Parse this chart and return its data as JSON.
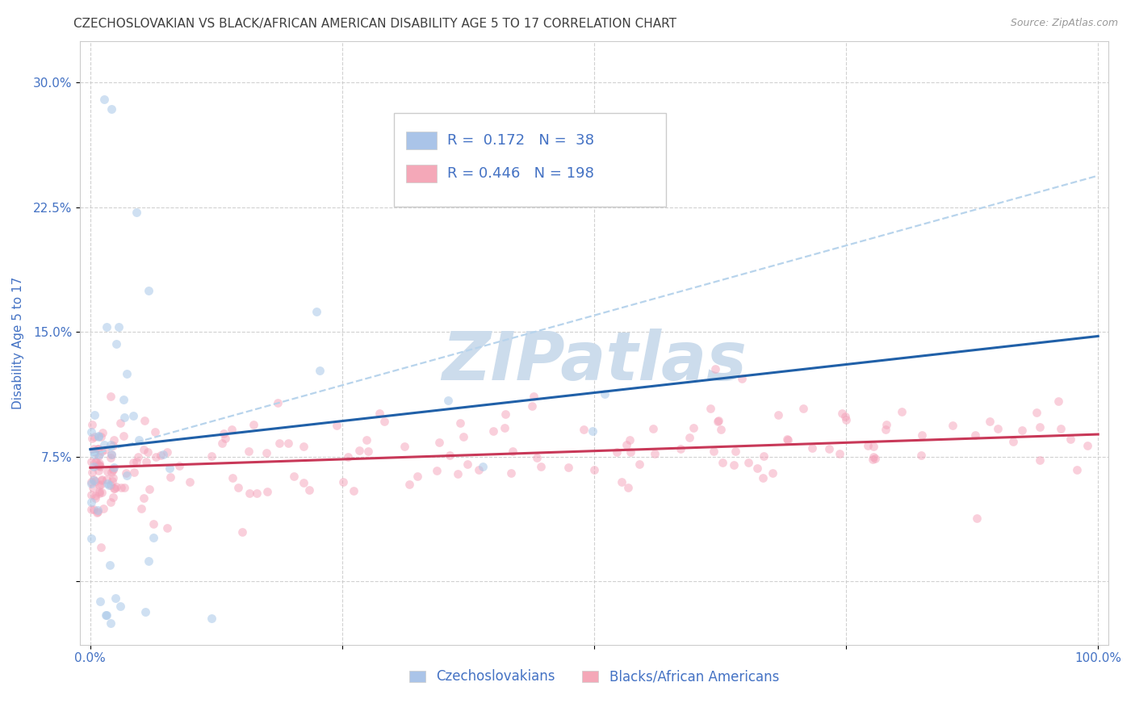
{
  "title": "CZECHOSLOVAKIAN VS BLACK/AFRICAN AMERICAN DISABILITY AGE 5 TO 17 CORRELATION CHART",
  "source": "Source: ZipAtlas.com",
  "ylabel": "Disability Age 5 to 17",
  "watermark": "ZIPatlas",
  "legend_entries": [
    {
      "label": "Czechoslovakians",
      "R": 0.172,
      "N": 38,
      "color": "#aac4e8"
    },
    {
      "label": "Blacks/African Americans",
      "R": 0.446,
      "N": 198,
      "color": "#f4a8b8"
    }
  ],
  "xlim": [
    -0.01,
    1.01
  ],
  "ylim": [
    -0.038,
    0.325
  ],
  "yticks": [
    0.0,
    0.075,
    0.15,
    0.225,
    0.3
  ],
  "ytick_labels": [
    "",
    "7.5%",
    "15.0%",
    "22.5%",
    "30.0%"
  ],
  "xticks": [
    0.0,
    0.25,
    0.5,
    0.75,
    1.0
  ],
  "xtick_labels": [
    "0.0%",
    "",
    "",
    "",
    "100.0%"
  ],
  "blue_line_intercept": 0.0795,
  "blue_line_slope": 0.068,
  "pink_line_intercept": 0.0685,
  "pink_line_slope": 0.02,
  "blue_dash_intercept": 0.076,
  "blue_dash_slope": 0.168,
  "blue_scatter_color": "#a8c8e8",
  "pink_scatter_color": "#f4a0b8",
  "blue_line_color": "#2060a8",
  "pink_line_color": "#c83858",
  "blue_dash_color": "#b8d4ec",
  "grid_color": "#cccccc",
  "title_color": "#404040",
  "axis_label_color": "#4472c4",
  "tick_label_color": "#4472c4",
  "legend_text_color": "#4472c4",
  "background_color": "#ffffff",
  "title_fontsize": 11,
  "axis_label_fontsize": 11,
  "tick_fontsize": 11,
  "legend_fontsize": 13,
  "watermark_color": "#ccdcec",
  "watermark_fontsize": 60
}
